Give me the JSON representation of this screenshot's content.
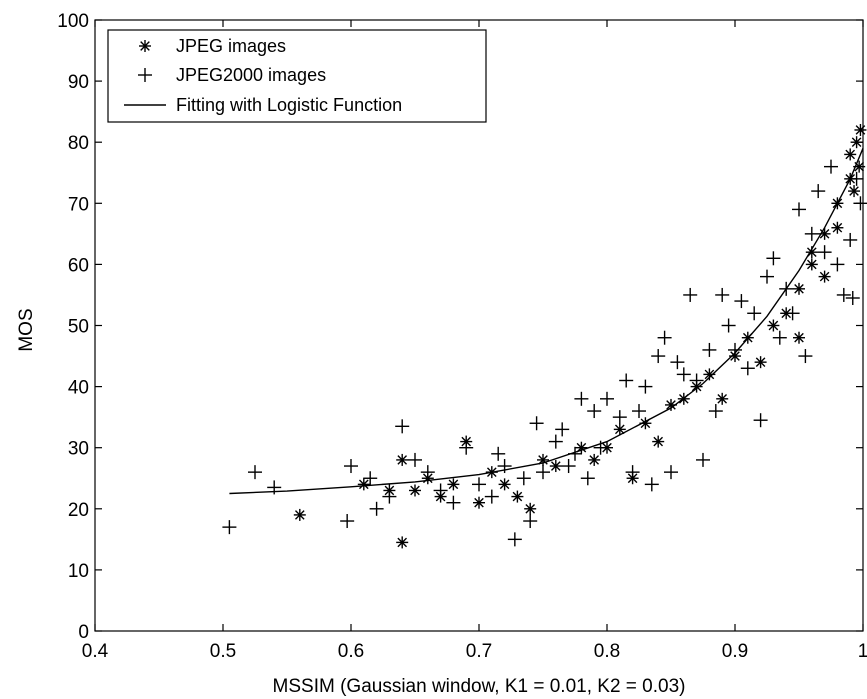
{
  "chart_data": {
    "type": "scatter",
    "title": "",
    "xlabel": "MSSIM (Gaussian window, K1 = 0.01, K2 = 0.03)",
    "ylabel": "MOS",
    "xlim": [
      0.4,
      1.0
    ],
    "ylim": [
      0,
      100
    ],
    "x_ticks": [
      "0.4",
      "0.5",
      "0.6",
      "0.7",
      "0.8",
      "0.9",
      "1"
    ],
    "y_ticks": [
      "0",
      "10",
      "20",
      "30",
      "40",
      "50",
      "60",
      "70",
      "80",
      "90",
      "100"
    ],
    "grid": false,
    "legend_position": "top-left",
    "legend": [
      "JPEG images",
      "JPEG2000 images",
      "Fitting with Logistic Function"
    ],
    "series": [
      {
        "name": "JPEG images",
        "marker": "asterisk",
        "points": [
          [
            0.56,
            19
          ],
          [
            0.61,
            24
          ],
          [
            0.63,
            23
          ],
          [
            0.64,
            28
          ],
          [
            0.64,
            14.5
          ],
          [
            0.65,
            23
          ],
          [
            0.66,
            25
          ],
          [
            0.67,
            22
          ],
          [
            0.68,
            24
          ],
          [
            0.69,
            31
          ],
          [
            0.7,
            21
          ],
          [
            0.71,
            26
          ],
          [
            0.72,
            24
          ],
          [
            0.73,
            22
          ],
          [
            0.74,
            20
          ],
          [
            0.75,
            28
          ],
          [
            0.76,
            27
          ],
          [
            0.78,
            30
          ],
          [
            0.79,
            28
          ],
          [
            0.8,
            30
          ],
          [
            0.81,
            33
          ],
          [
            0.82,
            25
          ],
          [
            0.83,
            34
          ],
          [
            0.84,
            31
          ],
          [
            0.85,
            37
          ],
          [
            0.86,
            38
          ],
          [
            0.87,
            40
          ],
          [
            0.88,
            42
          ],
          [
            0.89,
            38
          ],
          [
            0.9,
            45
          ],
          [
            0.91,
            48
          ],
          [
            0.92,
            44
          ],
          [
            0.93,
            50
          ],
          [
            0.94,
            52
          ],
          [
            0.95,
            56
          ],
          [
            0.95,
            48
          ],
          [
            0.96,
            60
          ],
          [
            0.96,
            62
          ],
          [
            0.97,
            65
          ],
          [
            0.97,
            58
          ],
          [
            0.98,
            70
          ],
          [
            0.98,
            66
          ],
          [
            0.99,
            74
          ],
          [
            0.99,
            78
          ],
          [
            0.995,
            80
          ],
          [
            0.998,
            82
          ],
          [
            0.997,
            76
          ],
          [
            0.993,
            72
          ]
        ]
      },
      {
        "name": "JPEG2000 images",
        "marker": "plus",
        "points": [
          [
            0.505,
            17
          ],
          [
            0.525,
            26
          ],
          [
            0.54,
            23.5
          ],
          [
            0.597,
            18
          ],
          [
            0.6,
            27
          ],
          [
            0.615,
            25
          ],
          [
            0.62,
            20
          ],
          [
            0.63,
            22
          ],
          [
            0.64,
            33.5
          ],
          [
            0.65,
            28
          ],
          [
            0.66,
            26
          ],
          [
            0.67,
            23
          ],
          [
            0.68,
            21
          ],
          [
            0.69,
            30
          ],
          [
            0.7,
            24
          ],
          [
            0.71,
            22
          ],
          [
            0.715,
            29
          ],
          [
            0.72,
            27
          ],
          [
            0.728,
            15
          ],
          [
            0.735,
            25
          ],
          [
            0.74,
            18
          ],
          [
            0.745,
            34
          ],
          [
            0.75,
            26
          ],
          [
            0.76,
            31
          ],
          [
            0.765,
            33
          ],
          [
            0.77,
            27
          ],
          [
            0.775,
            29
          ],
          [
            0.78,
            38
          ],
          [
            0.785,
            25
          ],
          [
            0.79,
            36
          ],
          [
            0.795,
            30
          ],
          [
            0.8,
            38
          ],
          [
            0.81,
            35
          ],
          [
            0.815,
            41
          ],
          [
            0.82,
            26
          ],
          [
            0.825,
            36
          ],
          [
            0.83,
            40
          ],
          [
            0.835,
            24
          ],
          [
            0.84,
            45
          ],
          [
            0.845,
            48
          ],
          [
            0.85,
            26
          ],
          [
            0.855,
            44
          ],
          [
            0.86,
            42
          ],
          [
            0.865,
            55
          ],
          [
            0.87,
            41
          ],
          [
            0.875,
            28
          ],
          [
            0.88,
            46
          ],
          [
            0.885,
            36
          ],
          [
            0.89,
            55
          ],
          [
            0.895,
            50
          ],
          [
            0.9,
            46
          ],
          [
            0.905,
            54
          ],
          [
            0.91,
            43
          ],
          [
            0.915,
            52
          ],
          [
            0.92,
            34.5
          ],
          [
            0.925,
            58
          ],
          [
            0.93,
            61
          ],
          [
            0.935,
            48
          ],
          [
            0.94,
            56
          ],
          [
            0.945,
            52
          ],
          [
            0.95,
            69
          ],
          [
            0.955,
            45
          ],
          [
            0.96,
            65
          ],
          [
            0.965,
            72
          ],
          [
            0.97,
            62
          ],
          [
            0.975,
            76
          ],
          [
            0.98,
            60
          ],
          [
            0.985,
            55
          ],
          [
            0.99,
            64
          ],
          [
            0.995,
            74
          ],
          [
            0.992,
            54.5
          ],
          [
            0.998,
            70
          ]
        ]
      },
      {
        "name": "Fitting with Logistic Function",
        "marker": "line",
        "points": [
          [
            0.505,
            22.5
          ],
          [
            0.55,
            22.9
          ],
          [
            0.6,
            23.6
          ],
          [
            0.65,
            24.4
          ],
          [
            0.7,
            25.6
          ],
          [
            0.75,
            27.5
          ],
          [
            0.8,
            31.0
          ],
          [
            0.85,
            36.5
          ],
          [
            0.875,
            40.5
          ],
          [
            0.9,
            45.5
          ],
          [
            0.925,
            51.5
          ],
          [
            0.95,
            59.0
          ],
          [
            0.97,
            66.0
          ],
          [
            0.99,
            74.0
          ],
          [
            1.0,
            79.0
          ]
        ]
      }
    ]
  }
}
